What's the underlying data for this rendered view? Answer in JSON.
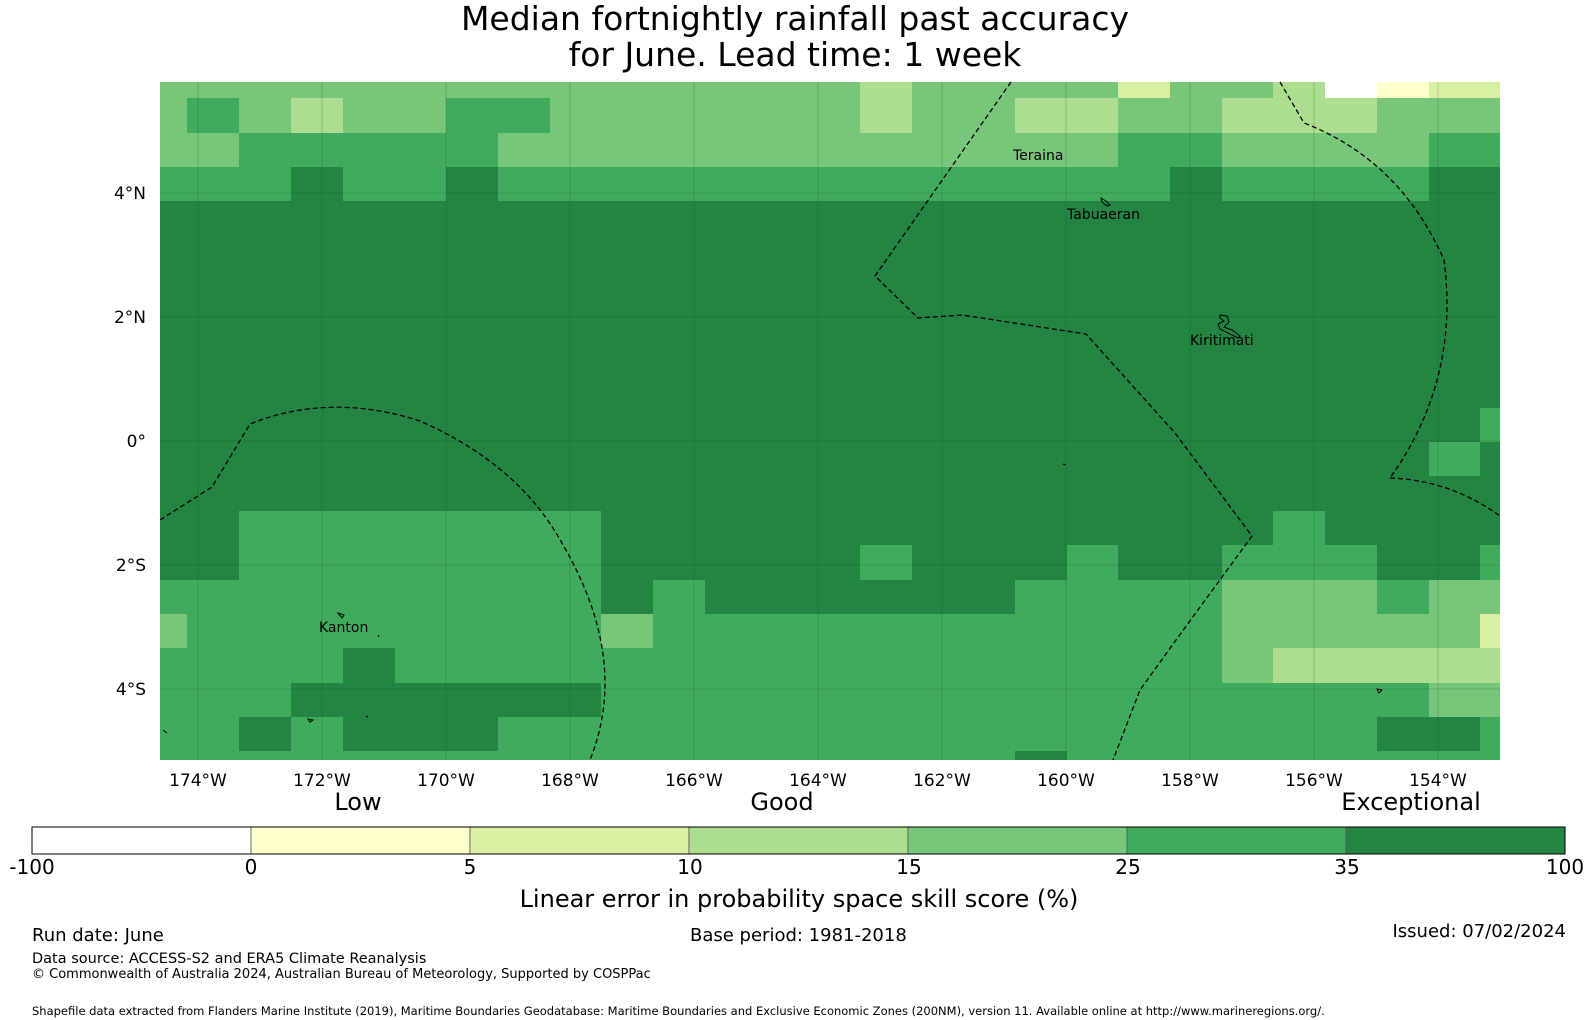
{
  "title": {
    "line1": "Median fortnightly rainfall past accuracy",
    "line2": "for June. Lead time: 1 week"
  },
  "map": {
    "lat_labels": [
      "4°N",
      "2°N",
      "0°",
      "2°S",
      "4°S"
    ],
    "lon_labels": [
      "174°W",
      "172°W",
      "170°W",
      "168°W",
      "166°W",
      "164°W",
      "162°W",
      "160°W",
      "158°W",
      "156°W",
      "154°W"
    ],
    "place_labels": [
      "Teraina",
      "Tabuaeran",
      "Kiritimati",
      "Kanton"
    ]
  },
  "legend": {
    "category_labels": [
      "Low",
      "Good",
      "Exceptional"
    ],
    "tick_labels": [
      "-100",
      "0",
      "5",
      "10",
      "15",
      "25",
      "35",
      "100"
    ],
    "colors": [
      "#ffffff",
      "#ffffcc",
      "#d9f0a3",
      "#addd8e",
      "#78c679",
      "#41ab5d",
      "#238443"
    ],
    "title": "Linear error in probability space skill score (%)"
  },
  "footer": {
    "run_date": "Run date: June",
    "base_period": "Base period: 1981-2018",
    "issued": "Issued: 07/02/2024",
    "data_source": "Data source: ACCESS-S2 and ERA5 Climate Reanalysis",
    "copyright": "© Commonwealth of Australia 2024, Australian Bureau of Meteorology, Supported by COSPPac",
    "shapefile": "Shapefile data extracted from Flanders Marine Institute (2019), Maritime Boundaries Geodatabase: Maritime Boundaries and Exclusive Economic Zones (200NM), version 11. Available online at http://www.marineregions.org/."
  }
}
